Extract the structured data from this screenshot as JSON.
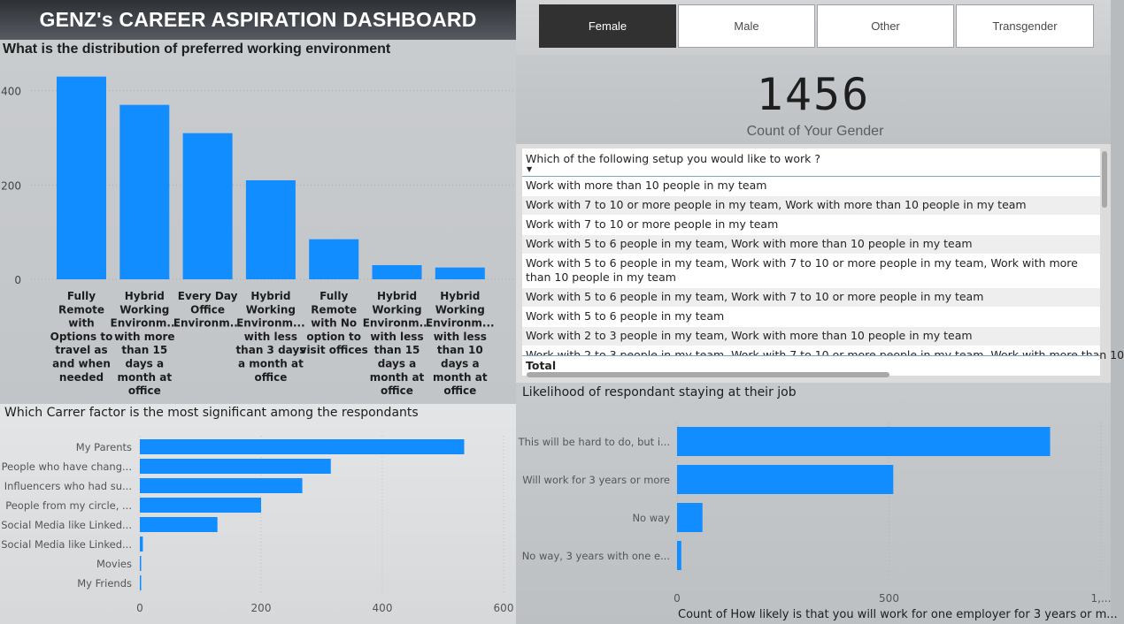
{
  "dashboard_title": "GENZ's CAREER ASPIRATION DASHBOARD",
  "colors": {
    "bar": "#118dff",
    "active_button": "#313131"
  },
  "gender_filter": {
    "buttons": [
      {
        "label": "Female",
        "active": true
      },
      {
        "label": "Male",
        "active": false
      },
      {
        "label": "Other",
        "active": false
      },
      {
        "label": "Transgender",
        "active": false
      }
    ]
  },
  "count_card": {
    "value": "1456",
    "label": "Count of Your Gender"
  },
  "setup_table": {
    "header": "Which of the following setup you would like to work ?",
    "rows": [
      "Work with more than 10 people in my team",
      "Work with 7 to 10 or more people in my team, Work with more than 10 people in my team",
      "Work with 7 to 10 or more people in my team",
      "Work with 5 to 6 people in my team, Work with more than 10 people in my team",
      "Work with 5 to 6 people in my team, Work with 7 to 10 or more people in my team, Work with more than 10 people in my team",
      "Work with 5 to 6 people in my team, Work with 7 to 10 or more people in my team",
      "Work with 5 to 6 people in my team",
      "Work with 2 to 3 people in my team, Work with more than 10 people in my team",
      "Work with 2 to 3 people in my team, Work with 7 to 10 or more people in my team, Work with more than 10"
    ],
    "total_label": "Total"
  },
  "chart_data": [
    {
      "id": "env",
      "type": "bar",
      "title": "What is the distribution of preferred working environment",
      "categories": [
        [
          "Fully",
          "Remote",
          "with",
          "Options to",
          "travel as",
          "and when",
          "needed"
        ],
        [
          "Hybrid",
          "Working",
          "Environm...",
          "with more",
          "than 15",
          "days a",
          "month at",
          "office"
        ],
        [
          "Every Day",
          "Office",
          "Environm..."
        ],
        [
          "Hybrid",
          "Working",
          "Environm...",
          "with less",
          "than 3 days",
          "a month at",
          "office"
        ],
        [
          "Fully",
          "Remote",
          "with No",
          "option to",
          "visit offices"
        ],
        [
          "Hybrid",
          "Working",
          "Environm...",
          "with less",
          "than 15",
          "days a",
          "month at",
          "office"
        ],
        [
          "Hybrid",
          "Working",
          "Environm...",
          "with less",
          "than 10",
          "days a",
          "month at",
          "office"
        ]
      ],
      "values": [
        430,
        370,
        310,
        210,
        85,
        30,
        25
      ],
      "yticks": [
        "0",
        "200",
        "400"
      ],
      "ylim": [
        0,
        480
      ]
    },
    {
      "id": "factor",
      "type": "bar",
      "orientation": "horizontal",
      "title": "Which Carrer factor is the most significant among the respondants",
      "categories": [
        "My Parents",
        "People who have chang...",
        "Influencers who had su...",
        "People from my circle, ...",
        "Social Media like Linked...",
        "Social Media like Linked...",
        "Movies",
        "My Friends"
      ],
      "values": [
        535,
        315,
        268,
        200,
        128,
        5,
        2,
        2
      ],
      "xticks": [
        "0",
        "200",
        "400",
        "600"
      ],
      "xlim": [
        0,
        600
      ]
    },
    {
      "id": "stay",
      "type": "bar",
      "orientation": "horizontal",
      "title": "Likelihood of respondant staying at their job",
      "categories": [
        "This will be hard to do, but i...",
        "Will work for 3 years or more",
        "No way",
        "No way, 3 years with one e..."
      ],
      "values": [
        880,
        510,
        60,
        10
      ],
      "xticks": [
        "0",
        "500",
        "1,..."
      ],
      "xlim": [
        0,
        1000
      ],
      "xlabel": "Count of How likely is that you will work for one employer for 3 years or m..."
    }
  ]
}
